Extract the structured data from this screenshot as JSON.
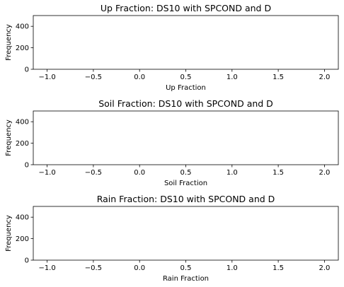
{
  "chart_data": [
    {
      "type": "bar",
      "title": "Up Fraction: DS10 with SPCOND and D",
      "xlabel": "Up Fraction",
      "ylabel": "Frequency",
      "xlim": [
        -1.15,
        2.15
      ],
      "ylim": [
        0,
        500
      ],
      "xticks": [
        -1.0,
        -0.5,
        0.0,
        0.5,
        1.0,
        1.5,
        2.0
      ],
      "xtick_labels": [
        "−1.0",
        "−0.5",
        "0.0",
        "0.5",
        "1.0",
        "1.5",
        "2.0"
      ],
      "yticks": [
        0,
        200,
        400
      ],
      "ytick_labels": [
        "0",
        "200",
        "400"
      ],
      "values": [],
      "grid": false
    },
    {
      "type": "bar",
      "title": "Soil Fraction: DS10 with SPCOND and D",
      "xlabel": "Soil Fraction",
      "ylabel": "Frequency",
      "xlim": [
        -1.15,
        2.15
      ],
      "ylim": [
        0,
        500
      ],
      "xticks": [
        -1.0,
        -0.5,
        0.0,
        0.5,
        1.0,
        1.5,
        2.0
      ],
      "xtick_labels": [
        "−1.0",
        "−0.5",
        "0.0",
        "0.5",
        "1.0",
        "1.5",
        "2.0"
      ],
      "yticks": [
        0,
        200,
        400
      ],
      "ytick_labels": [
        "0",
        "200",
        "400"
      ],
      "values": [],
      "grid": false
    },
    {
      "type": "bar",
      "title": "Rain Fraction: DS10 with SPCOND and D",
      "xlabel": "Rain Fraction",
      "ylabel": "Frequency",
      "xlim": [
        -1.15,
        2.15
      ],
      "ylim": [
        0,
        500
      ],
      "xticks": [
        -1.0,
        -0.5,
        0.0,
        0.5,
        1.0,
        1.5,
        2.0
      ],
      "xtick_labels": [
        "−1.0",
        "−0.5",
        "0.0",
        "0.5",
        "1.0",
        "1.5",
        "2.0"
      ],
      "yticks": [
        0,
        200,
        400
      ],
      "ytick_labels": [
        "0",
        "200",
        "400"
      ],
      "values": [],
      "grid": false
    }
  ]
}
